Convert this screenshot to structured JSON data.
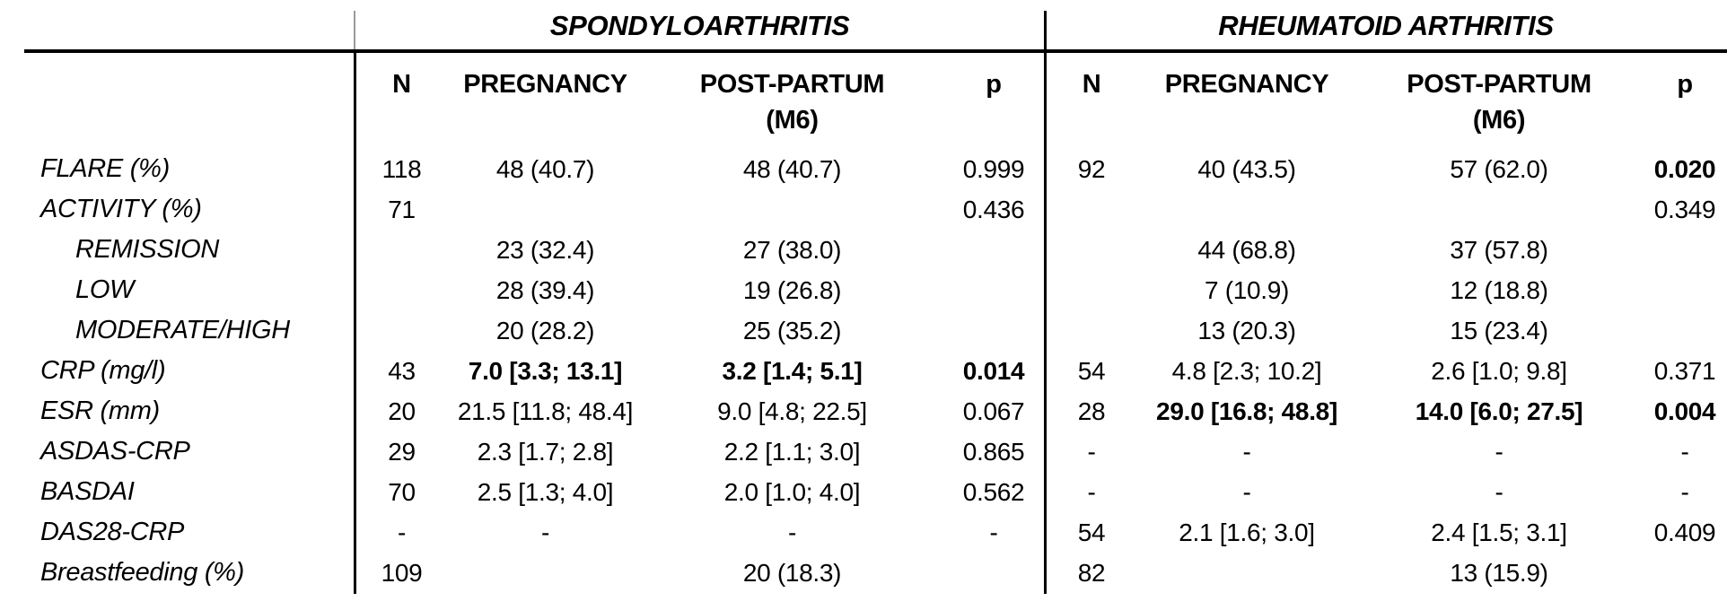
{
  "colors": {
    "background": "#ffffff",
    "text": "#000000",
    "rule": "#000000",
    "divider_gray": "#9a9a9a"
  },
  "table": {
    "groups": [
      {
        "title": "SPONDYLOARTHRITIS"
      },
      {
        "title": "RHEUMATOID ARTHRITIS"
      }
    ],
    "columns": {
      "n": "N",
      "pregnancy": "PREGNANCY",
      "postpartum": "POST-PARTUM",
      "postpartum_sub": "(M6)",
      "p": "p"
    },
    "rows": [
      {
        "label": {
          "t": "FLARE (%)",
          "indent": false
        },
        "spa": {
          "n": {
            "t": "118"
          },
          "pregnancy": {
            "t": "48 (40.7)"
          },
          "postpartum": {
            "t": "48 (40.7)"
          },
          "p": {
            "t": "0.999"
          }
        },
        "ra": {
          "n": {
            "t": "92"
          },
          "pregnancy": {
            "t": "40 (43.5)"
          },
          "postpartum": {
            "t": "57 (62.0)"
          },
          "p": {
            "t": "0.020",
            "b": true
          }
        }
      },
      {
        "label": {
          "t": "ACTIVITY (%)",
          "indent": false
        },
        "spa": {
          "n": {
            "t": "71"
          },
          "pregnancy": {
            "t": ""
          },
          "postpartum": {
            "t": ""
          },
          "p": {
            "t": "0.436"
          }
        },
        "ra": {
          "n": {
            "t": ""
          },
          "pregnancy": {
            "t": ""
          },
          "postpartum": {
            "t": ""
          },
          "p": {
            "t": "0.349"
          }
        }
      },
      {
        "label": {
          "t": "REMISSION",
          "indent": true
        },
        "spa": {
          "n": {
            "t": ""
          },
          "pregnancy": {
            "t": "23 (32.4)"
          },
          "postpartum": {
            "t": "27 (38.0)"
          },
          "p": {
            "t": ""
          }
        },
        "ra": {
          "n": {
            "t": ""
          },
          "pregnancy": {
            "t": "44 (68.8)"
          },
          "postpartum": {
            "t": "37 (57.8)"
          },
          "p": {
            "t": ""
          }
        }
      },
      {
        "label": {
          "t": "LOW",
          "indent": true
        },
        "spa": {
          "n": {
            "t": ""
          },
          "pregnancy": {
            "t": "28 (39.4)"
          },
          "postpartum": {
            "t": "19 (26.8)"
          },
          "p": {
            "t": ""
          }
        },
        "ra": {
          "n": {
            "t": ""
          },
          "pregnancy": {
            "t": "7 (10.9)"
          },
          "postpartum": {
            "t": "12 (18.8)"
          },
          "p": {
            "t": ""
          }
        }
      },
      {
        "label": {
          "t": "MODERATE/HIGH",
          "indent": true
        },
        "spa": {
          "n": {
            "t": ""
          },
          "pregnancy": {
            "t": "20 (28.2)"
          },
          "postpartum": {
            "t": "25 (35.2)"
          },
          "p": {
            "t": ""
          }
        },
        "ra": {
          "n": {
            "t": ""
          },
          "pregnancy": {
            "t": "13 (20.3)"
          },
          "postpartum": {
            "t": "15 (23.4)"
          },
          "p": {
            "t": ""
          }
        }
      },
      {
        "label": {
          "t": "CRP (mg/l)",
          "indent": false
        },
        "spa": {
          "n": {
            "t": "43"
          },
          "pregnancy": {
            "t": "7.0 [3.3; 13.1]",
            "b": true
          },
          "postpartum": {
            "t": "3.2 [1.4; 5.1]",
            "b": true
          },
          "p": {
            "t": "0.014",
            "b": true
          }
        },
        "ra": {
          "n": {
            "t": "54"
          },
          "pregnancy": {
            "t": "4.8 [2.3; 10.2]"
          },
          "postpartum": {
            "t": "2.6 [1.0; 9.8]"
          },
          "p": {
            "t": "0.371"
          }
        }
      },
      {
        "label": {
          "t": "ESR (mm)",
          "indent": false
        },
        "spa": {
          "n": {
            "t": "20"
          },
          "pregnancy": {
            "t": "21.5 [11.8; 48.4]"
          },
          "postpartum": {
            "t": "9.0 [4.8; 22.5]"
          },
          "p": {
            "t": "0.067"
          }
        },
        "ra": {
          "n": {
            "t": "28"
          },
          "pregnancy": {
            "t": "29.0 [16.8; 48.8]",
            "b": true
          },
          "postpartum": {
            "t": "14.0 [6.0; 27.5]",
            "b": true
          },
          "p": {
            "t": "0.004",
            "b": true
          }
        }
      },
      {
        "label": {
          "t": "ASDAS-CRP",
          "indent": false
        },
        "spa": {
          "n": {
            "t": "29"
          },
          "pregnancy": {
            "t": "2.3 [1.7; 2.8]"
          },
          "postpartum": {
            "t": "2.2 [1.1; 3.0]"
          },
          "p": {
            "t": "0.865"
          }
        },
        "ra": {
          "n": {
            "t": "-"
          },
          "pregnancy": {
            "t": "-"
          },
          "postpartum": {
            "t": "-"
          },
          "p": {
            "t": "-"
          }
        }
      },
      {
        "label": {
          "t": "BASDAI",
          "indent": false
        },
        "spa": {
          "n": {
            "t": "70"
          },
          "pregnancy": {
            "t": "2.5 [1.3; 4.0]"
          },
          "postpartum": {
            "t": "2.0 [1.0; 4.0]"
          },
          "p": {
            "t": "0.562"
          }
        },
        "ra": {
          "n": {
            "t": "-"
          },
          "pregnancy": {
            "t": "-"
          },
          "postpartum": {
            "t": "-"
          },
          "p": {
            "t": "-"
          }
        }
      },
      {
        "label": {
          "t": "DAS28-CRP",
          "indent": false
        },
        "spa": {
          "n": {
            "t": "-"
          },
          "pregnancy": {
            "t": "-"
          },
          "postpartum": {
            "t": "-"
          },
          "p": {
            "t": "-"
          }
        },
        "ra": {
          "n": {
            "t": "54"
          },
          "pregnancy": {
            "t": "2.1 [1.6; 3.0]"
          },
          "postpartum": {
            "t": "2.4 [1.5; 3.1]"
          },
          "p": {
            "t": "0.409"
          }
        }
      },
      {
        "label": {
          "t": "Breastfeeding (%)",
          "indent": false
        },
        "spa": {
          "n": {
            "t": "109"
          },
          "pregnancy": {
            "t": ""
          },
          "postpartum": {
            "t": "20 (18.3)"
          },
          "p": {
            "t": ""
          }
        },
        "ra": {
          "n": {
            "t": "82"
          },
          "pregnancy": {
            "t": ""
          },
          "postpartum": {
            "t": "13 (15.9)"
          },
          "p": {
            "t": ""
          }
        }
      }
    ]
  }
}
